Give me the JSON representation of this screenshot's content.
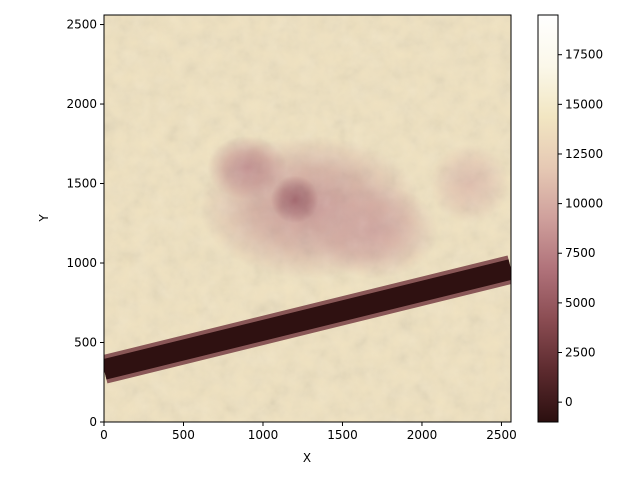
{
  "chart_data": {
    "type": "heatmap",
    "title": "",
    "xlabel": "X",
    "ylabel": "Y",
    "xlim": [
      0,
      2560
    ],
    "ylim": [
      0,
      2560
    ],
    "x_ticks": [
      0,
      500,
      1000,
      1500,
      2000,
      2500
    ],
    "y_ticks": [
      0,
      500,
      1000,
      1500,
      2000,
      2500
    ],
    "colorbar": {
      "range": [
        -1000,
        19500
      ],
      "ticks": [
        0,
        2500,
        5000,
        7500,
        10000,
        12500,
        15000,
        17500
      ],
      "colormap_stops": [
        "#2b0f0f",
        "#5c2a2e",
        "#8a4c52",
        "#b0727a",
        "#cfa09c",
        "#e6c9b4",
        "#f2e6c2",
        "#fbf8ea",
        "#ffffff"
      ]
    },
    "field": {
      "background_value": 14000,
      "features": [
        {
          "kind": "blob",
          "x": 1300,
          "y": 1350,
          "radius_x": 700,
          "radius_y": 450,
          "value": 8500
        },
        {
          "kind": "blob",
          "x": 900,
          "y": 1600,
          "radius_x": 250,
          "radius_y": 200,
          "value": 8000
        },
        {
          "kind": "blob",
          "x": 1200,
          "y": 1400,
          "radius_x": 150,
          "radius_y": 150,
          "value": 5500
        },
        {
          "kind": "blob",
          "x": 1700,
          "y": 1200,
          "radius_x": 400,
          "radius_y": 300,
          "value": 9500
        },
        {
          "kind": "blob",
          "x": 2300,
          "y": 1500,
          "radius_x": 250,
          "radius_y": 250,
          "value": 11000
        }
      ],
      "band": {
        "x_start": 0,
        "y_start": 330,
        "x_end": 2560,
        "y_end": 960,
        "width": 180,
        "value": -800
      }
    }
  }
}
